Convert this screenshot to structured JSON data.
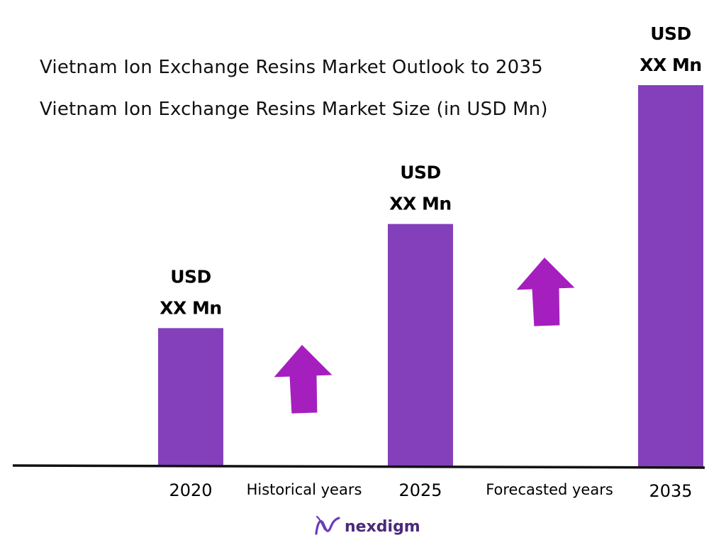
{
  "chart_data": {
    "type": "bar",
    "title": "Vietnam Ion Exchange Resins Market Outlook to 2035",
    "subtitle": "Vietnam Ion Exchange Resins Market Size (in USD Mn)",
    "categories": [
      "2020",
      "2025",
      "2035"
    ],
    "values": [
      2.0,
      3.5,
      5.5
    ],
    "value_labels": [
      {
        "line1": "USD",
        "line2": "XX Mn"
      },
      {
        "line1": "USD",
        "line2": "XX Mn"
      },
      {
        "line1": "USD",
        "line2": "XX Mn"
      }
    ],
    "period_labels": [
      "Historical years",
      "Forecasted years"
    ],
    "ylim": [
      0,
      5.5
    ],
    "grid": false,
    "xlabel": "",
    "ylabel": ""
  },
  "colors": {
    "bar": "#8440bb",
    "arrow": "#a51fbf",
    "axis": "#111111",
    "brand_text": "#4a2a7a",
    "brand_icon": "#6b3bb8"
  },
  "brand": {
    "name": "nexdigm",
    "icon": "nexdigm-wave-logo-icon"
  },
  "arrows": {
    "icon": "up-arrow-icon"
  }
}
